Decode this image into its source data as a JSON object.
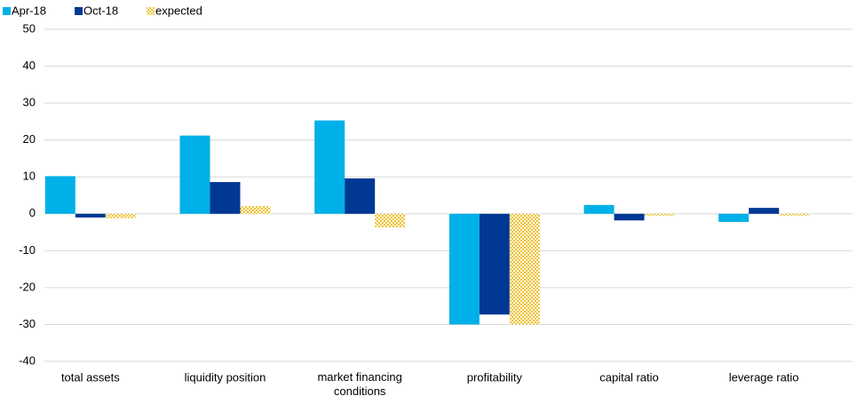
{
  "chart_data": {
    "type": "bar",
    "categories": [
      "total assets",
      "liquidity position",
      "market financing conditions",
      "profitability",
      "capital ratio",
      "leverage ratio"
    ],
    "series": [
      {
        "name": "Apr-18",
        "color": "#00b0e8",
        "values": [
          10.2,
          21.2,
          25.3,
          -30,
          2.4,
          -2.2
        ]
      },
      {
        "name": "Oct-18",
        "color": "#003893",
        "values": [
          -1,
          8.6,
          9.6,
          -27.3,
          -1.8,
          1.6
        ]
      },
      {
        "name": "expected",
        "color": "#f2c12e",
        "pattern": "checkered",
        "values": [
          -1.2,
          2.1,
          -3.7,
          -30,
          -0.5,
          -0.5
        ]
      }
    ],
    "ylim": [
      -40,
      50
    ],
    "yticks": [
      -40,
      -30,
      -20,
      -10,
      0,
      10,
      20,
      30,
      40,
      50
    ],
    "grid": true,
    "legend": "top-left"
  }
}
